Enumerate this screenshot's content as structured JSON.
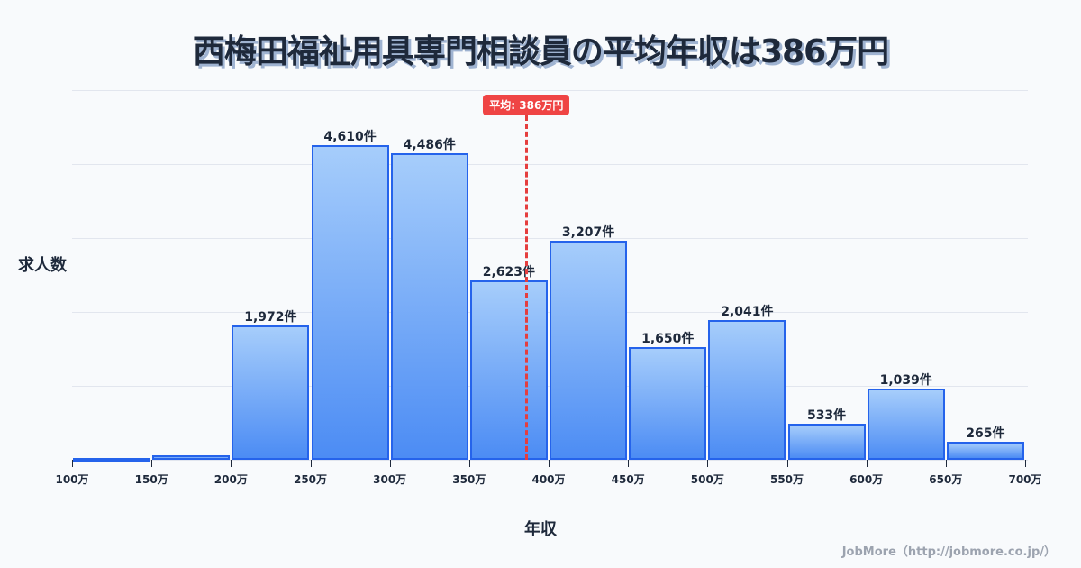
{
  "title": "西梅田福祉用具専門相談員の平均年収は386万円",
  "y_axis_label": "求人数",
  "x_axis_label": "年収",
  "credit": "JobMore（http://jobmore.co.jp/）",
  "mean_badge": "平均: 386万円",
  "colors": {
    "bar_top": "#a6cdfb",
    "bar_bottom": "#4c8cf4",
    "bar_border": "#2563eb",
    "mean_line": "#e53e3e",
    "badge_bg": "#ef4444",
    "text": "#1e293b",
    "background": "#f8fafc"
  },
  "chart_data": {
    "type": "bar",
    "title": "西梅田福祉用具専門相談員の平均年収は386万円",
    "xlabel": "年収",
    "ylabel": "求人数",
    "categories": [
      "100-150万",
      "150-200万",
      "200-250万",
      "250-300万",
      "300-350万",
      "350-400万",
      "400-450万",
      "450-500万",
      "500-550万",
      "550-600万",
      "600-650万",
      "650-700万"
    ],
    "bin_edges": [
      100,
      150,
      200,
      250,
      300,
      350,
      400,
      450,
      500,
      550,
      600,
      650,
      700
    ],
    "tick_labels": [
      "100万",
      "150万",
      "200万",
      "250万",
      "300万",
      "350万",
      "400万",
      "450万",
      "500万",
      "550万",
      "600万",
      "650万",
      "700万"
    ],
    "values": [
      20,
      60,
      1972,
      4610,
      4486,
      2623,
      3207,
      1650,
      2041,
      533,
      1039,
      265
    ],
    "value_labels": [
      "",
      "",
      "1,972件",
      "4,610件",
      "4,486件",
      "2,623件",
      "3,207件",
      "1,650件",
      "2,041件",
      "533件",
      "1,039件",
      "265件"
    ],
    "mean": 386,
    "mean_label": "平均: 386万円",
    "ylim": [
      0,
      5416
    ],
    "grid": true,
    "legend": null
  }
}
